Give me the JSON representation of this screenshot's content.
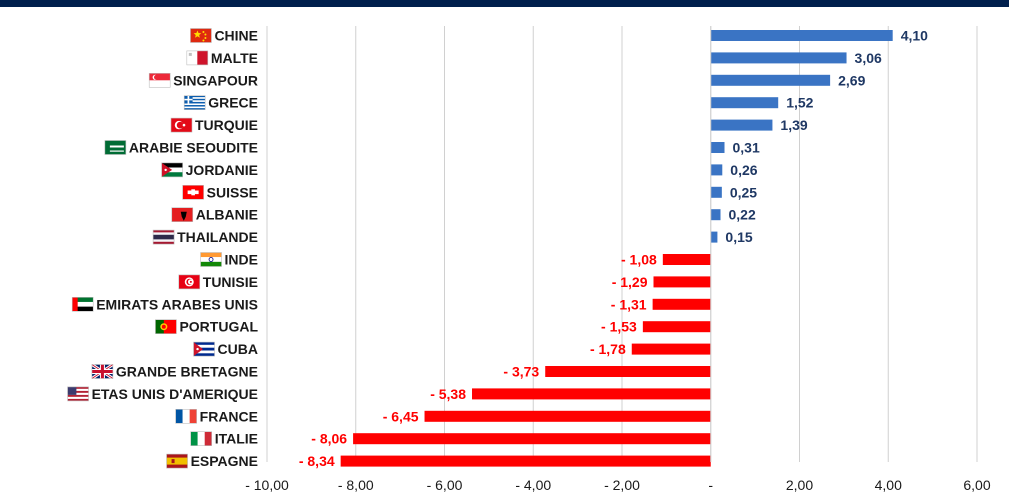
{
  "chart_data": {
    "type": "bar",
    "orientation": "horizontal",
    "categories": [
      "CHINE",
      "MALTE",
      "SINGAPOUR",
      "GRECE",
      "TURQUIE",
      "ARABIE SEOUDITE",
      "JORDANIE",
      "SUISSE",
      "ALBANIE",
      "THAILANDE",
      "INDE",
      "TUNISIE",
      "EMIRATS ARABES UNIS",
      "PORTUGAL",
      "CUBA",
      "GRANDE BRETAGNE",
      "ETAS UNIS D'AMERIQUE",
      "FRANCE",
      "ITALIE",
      "ESPAGNE"
    ],
    "values": [
      4.1,
      3.06,
      2.69,
      1.52,
      1.39,
      0.31,
      0.26,
      0.25,
      0.22,
      0.15,
      -1.08,
      -1.29,
      -1.31,
      -1.53,
      -1.78,
      -3.73,
      -5.38,
      -6.45,
      -8.06,
      -8.34
    ],
    "value_labels": [
      "4,10",
      "3,06",
      "2,69",
      "1,52",
      "1,39",
      "0,31",
      "0,26",
      "0,25",
      "0,22",
      "0,15",
      "- 1,08",
      "- 1,29",
      "- 1,31",
      "- 1,53",
      "- 1,78",
      "- 3,73",
      "- 5,38",
      "- 6,45",
      "- 8,06",
      "- 8,34"
    ],
    "flags": [
      "china-flag-icon",
      "malta-flag-icon",
      "singapore-flag-icon",
      "greece-flag-icon",
      "turkey-flag-icon",
      "saudi-arabia-flag-icon",
      "jordan-flag-icon",
      "switzerland-flag-icon",
      "albania-flag-icon",
      "thailand-flag-icon",
      "india-flag-icon",
      "tunisia-flag-icon",
      "uae-flag-icon",
      "portugal-flag-icon",
      "cuba-flag-icon",
      "uk-flag-icon",
      "usa-flag-icon",
      "france-flag-icon",
      "italy-flag-icon",
      "spain-flag-icon"
    ],
    "xlim": [
      -10,
      6
    ],
    "x_ticks": [
      -10,
      -8,
      -6,
      -4,
      -2,
      0,
      2,
      4,
      6
    ],
    "x_tick_labels": [
      "- 10,00",
      "- 8,00",
      "- 6,00",
      "- 4,00",
      "- 2,00",
      "-",
      "2,00",
      "4,00",
      "6,00"
    ],
    "grid": "vertical",
    "title": "",
    "xlabel": "",
    "ylabel": "",
    "colors": {
      "positive": "#3a74c4",
      "negative": "#ff0000",
      "positive_label": "#1f3864",
      "negative_label": "#ff0000",
      "header_band": "#001f4d",
      "gridline": "#d0d0d0"
    }
  }
}
